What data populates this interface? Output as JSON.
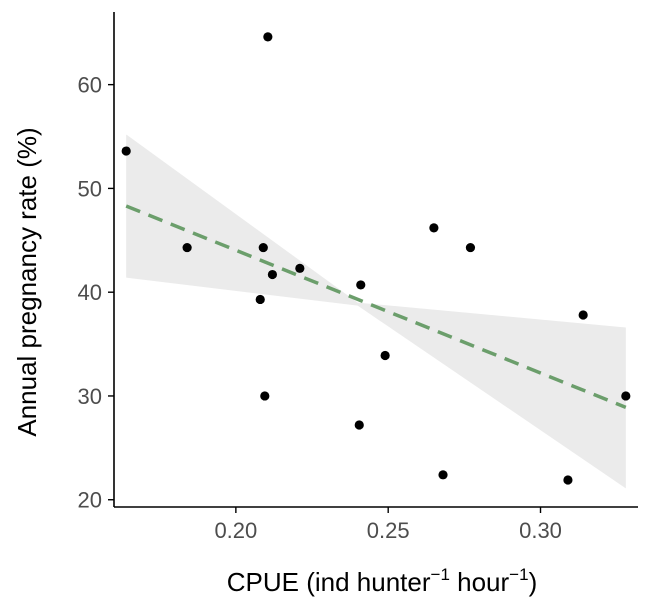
{
  "chart_data": {
    "type": "scatter",
    "xlabel": {
      "prefix": "CPUE (ind hunter",
      "sup1": "−1",
      "middle": " hour",
      "sup2": "−1",
      "suffix": ")"
    },
    "ylabel": "Annual pregnancy rate (%)",
    "xlim": [
      0.16,
      0.332
    ],
    "ylim": [
      19.3,
      67
    ],
    "xticks": [
      {
        "value": 0.2,
        "label": "0.20"
      },
      {
        "value": 0.25,
        "label": "0.25"
      },
      {
        "value": 0.3,
        "label": "0.30"
      }
    ],
    "yticks": [
      {
        "value": 20,
        "label": "20"
      },
      {
        "value": 30,
        "label": "30"
      },
      {
        "value": 40,
        "label": "40"
      },
      {
        "value": 50,
        "label": "50"
      },
      {
        "value": 60,
        "label": "60"
      }
    ],
    "points": [
      {
        "x": 0.164,
        "y": 53.6
      },
      {
        "x": 0.184,
        "y": 44.3
      },
      {
        "x": 0.208,
        "y": 39.3
      },
      {
        "x": 0.209,
        "y": 44.3
      },
      {
        "x": 0.2095,
        "y": 30.0
      },
      {
        "x": 0.2105,
        "y": 64.6
      },
      {
        "x": 0.212,
        "y": 41.7
      },
      {
        "x": 0.221,
        "y": 42.3
      },
      {
        "x": 0.2405,
        "y": 27.2
      },
      {
        "x": 0.241,
        "y": 40.7
      },
      {
        "x": 0.249,
        "y": 33.9
      },
      {
        "x": 0.265,
        "y": 46.2
      },
      {
        "x": 0.268,
        "y": 22.4
      },
      {
        "x": 0.277,
        "y": 44.3
      },
      {
        "x": 0.309,
        "y": 21.9
      },
      {
        "x": 0.314,
        "y": 37.8
      },
      {
        "x": 0.328,
        "y": 30.0
      }
    ],
    "fit": {
      "style": "dashed",
      "color": "#6b9e6b",
      "line": [
        {
          "x": 0.164,
          "y": 48.3
        },
        {
          "x": 0.328,
          "y": 28.9
        }
      ],
      "ci_upper": [
        {
          "x": 0.164,
          "y": 55.2
        },
        {
          "x": 0.24,
          "y": 39.0
        },
        {
          "x": 0.328,
          "y": 36.6
        }
      ],
      "ci_lower": [
        {
          "x": 0.164,
          "y": 41.4
        },
        {
          "x": 0.24,
          "y": 38.7
        },
        {
          "x": 0.328,
          "y": 21.1
        }
      ],
      "band_color": "#ebebeb"
    },
    "point_color": "#000000",
    "grid": false
  }
}
